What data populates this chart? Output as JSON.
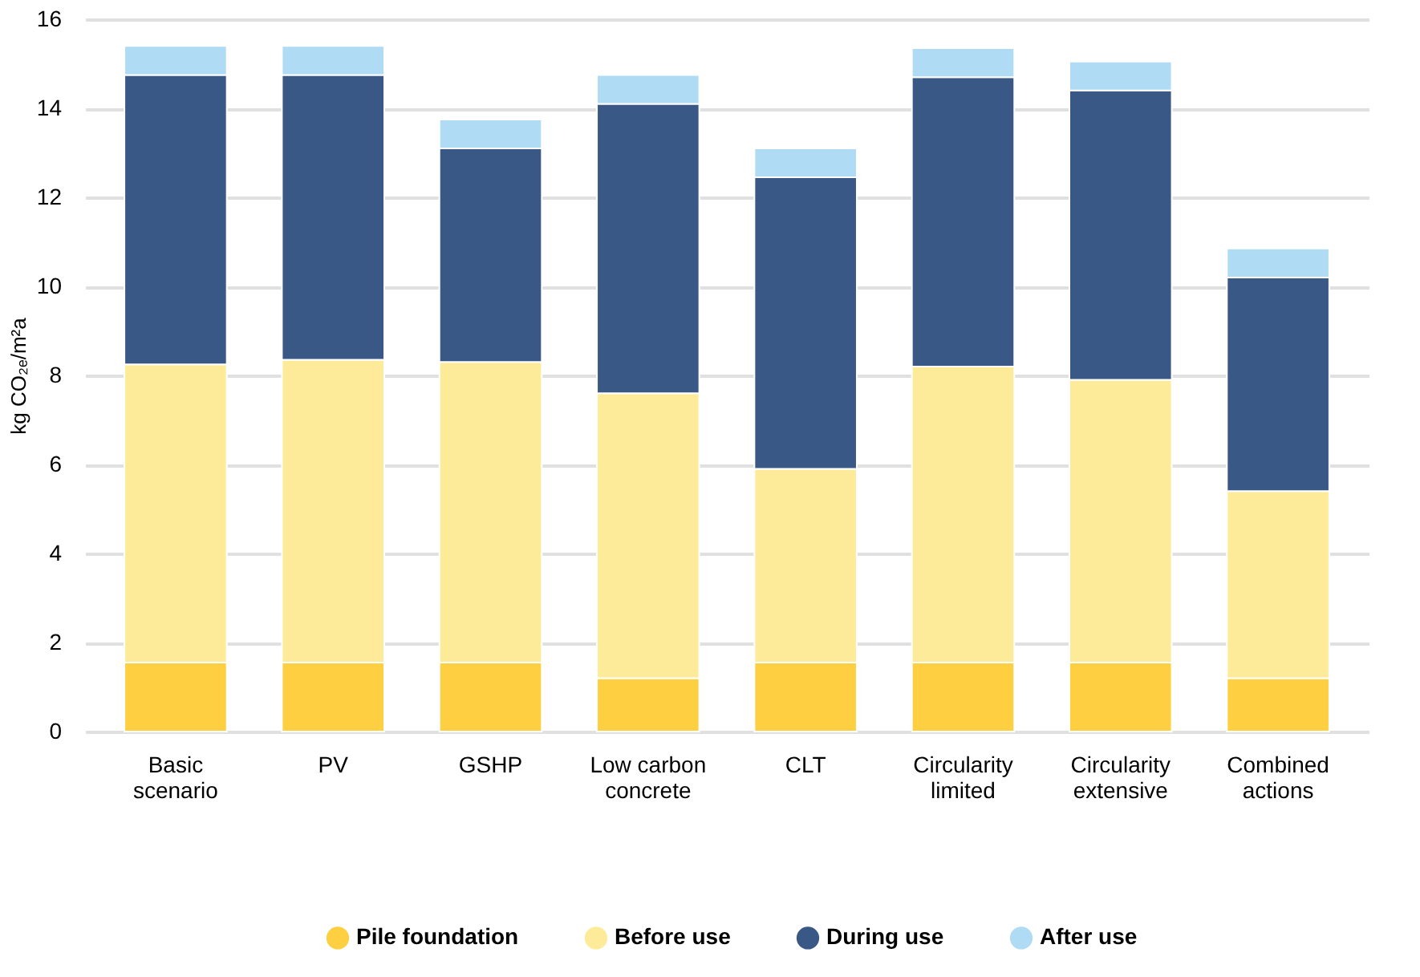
{
  "chart_data": {
    "type": "bar",
    "stacked": true,
    "ylabel": "kg CO₂ₑ/m²a",
    "categories": [
      "Basic scenario",
      "PV",
      "GSHP",
      "Low carbon concrete",
      "CLT",
      "Circularity limited",
      "Circularity extensive",
      "Combined actions"
    ],
    "series": [
      {
        "name": "Pile foundation",
        "color": "#fdcf41",
        "values": [
          1.55,
          1.55,
          1.55,
          1.2,
          1.55,
          1.55,
          1.55,
          1.2
        ]
      },
      {
        "name": "Before use",
        "color": "#feeb9a",
        "values": [
          6.7,
          6.8,
          6.75,
          6.4,
          4.35,
          6.65,
          6.35,
          4.2
        ]
      },
      {
        "name": "During use",
        "color": "#395886",
        "values": [
          6.5,
          6.4,
          4.8,
          6.5,
          6.55,
          6.5,
          6.5,
          4.8
        ]
      },
      {
        "name": "After use",
        "color": "#b0dbf5",
        "values": [
          0.65,
          0.65,
          0.65,
          0.65,
          0.65,
          0.65,
          0.65,
          0.65
        ]
      }
    ],
    "ylim": [
      0,
      16
    ],
    "yticks": [
      0,
      2,
      4,
      6,
      8,
      10,
      12,
      14,
      16
    ],
    "grid": "y",
    "legend": "bottom"
  }
}
